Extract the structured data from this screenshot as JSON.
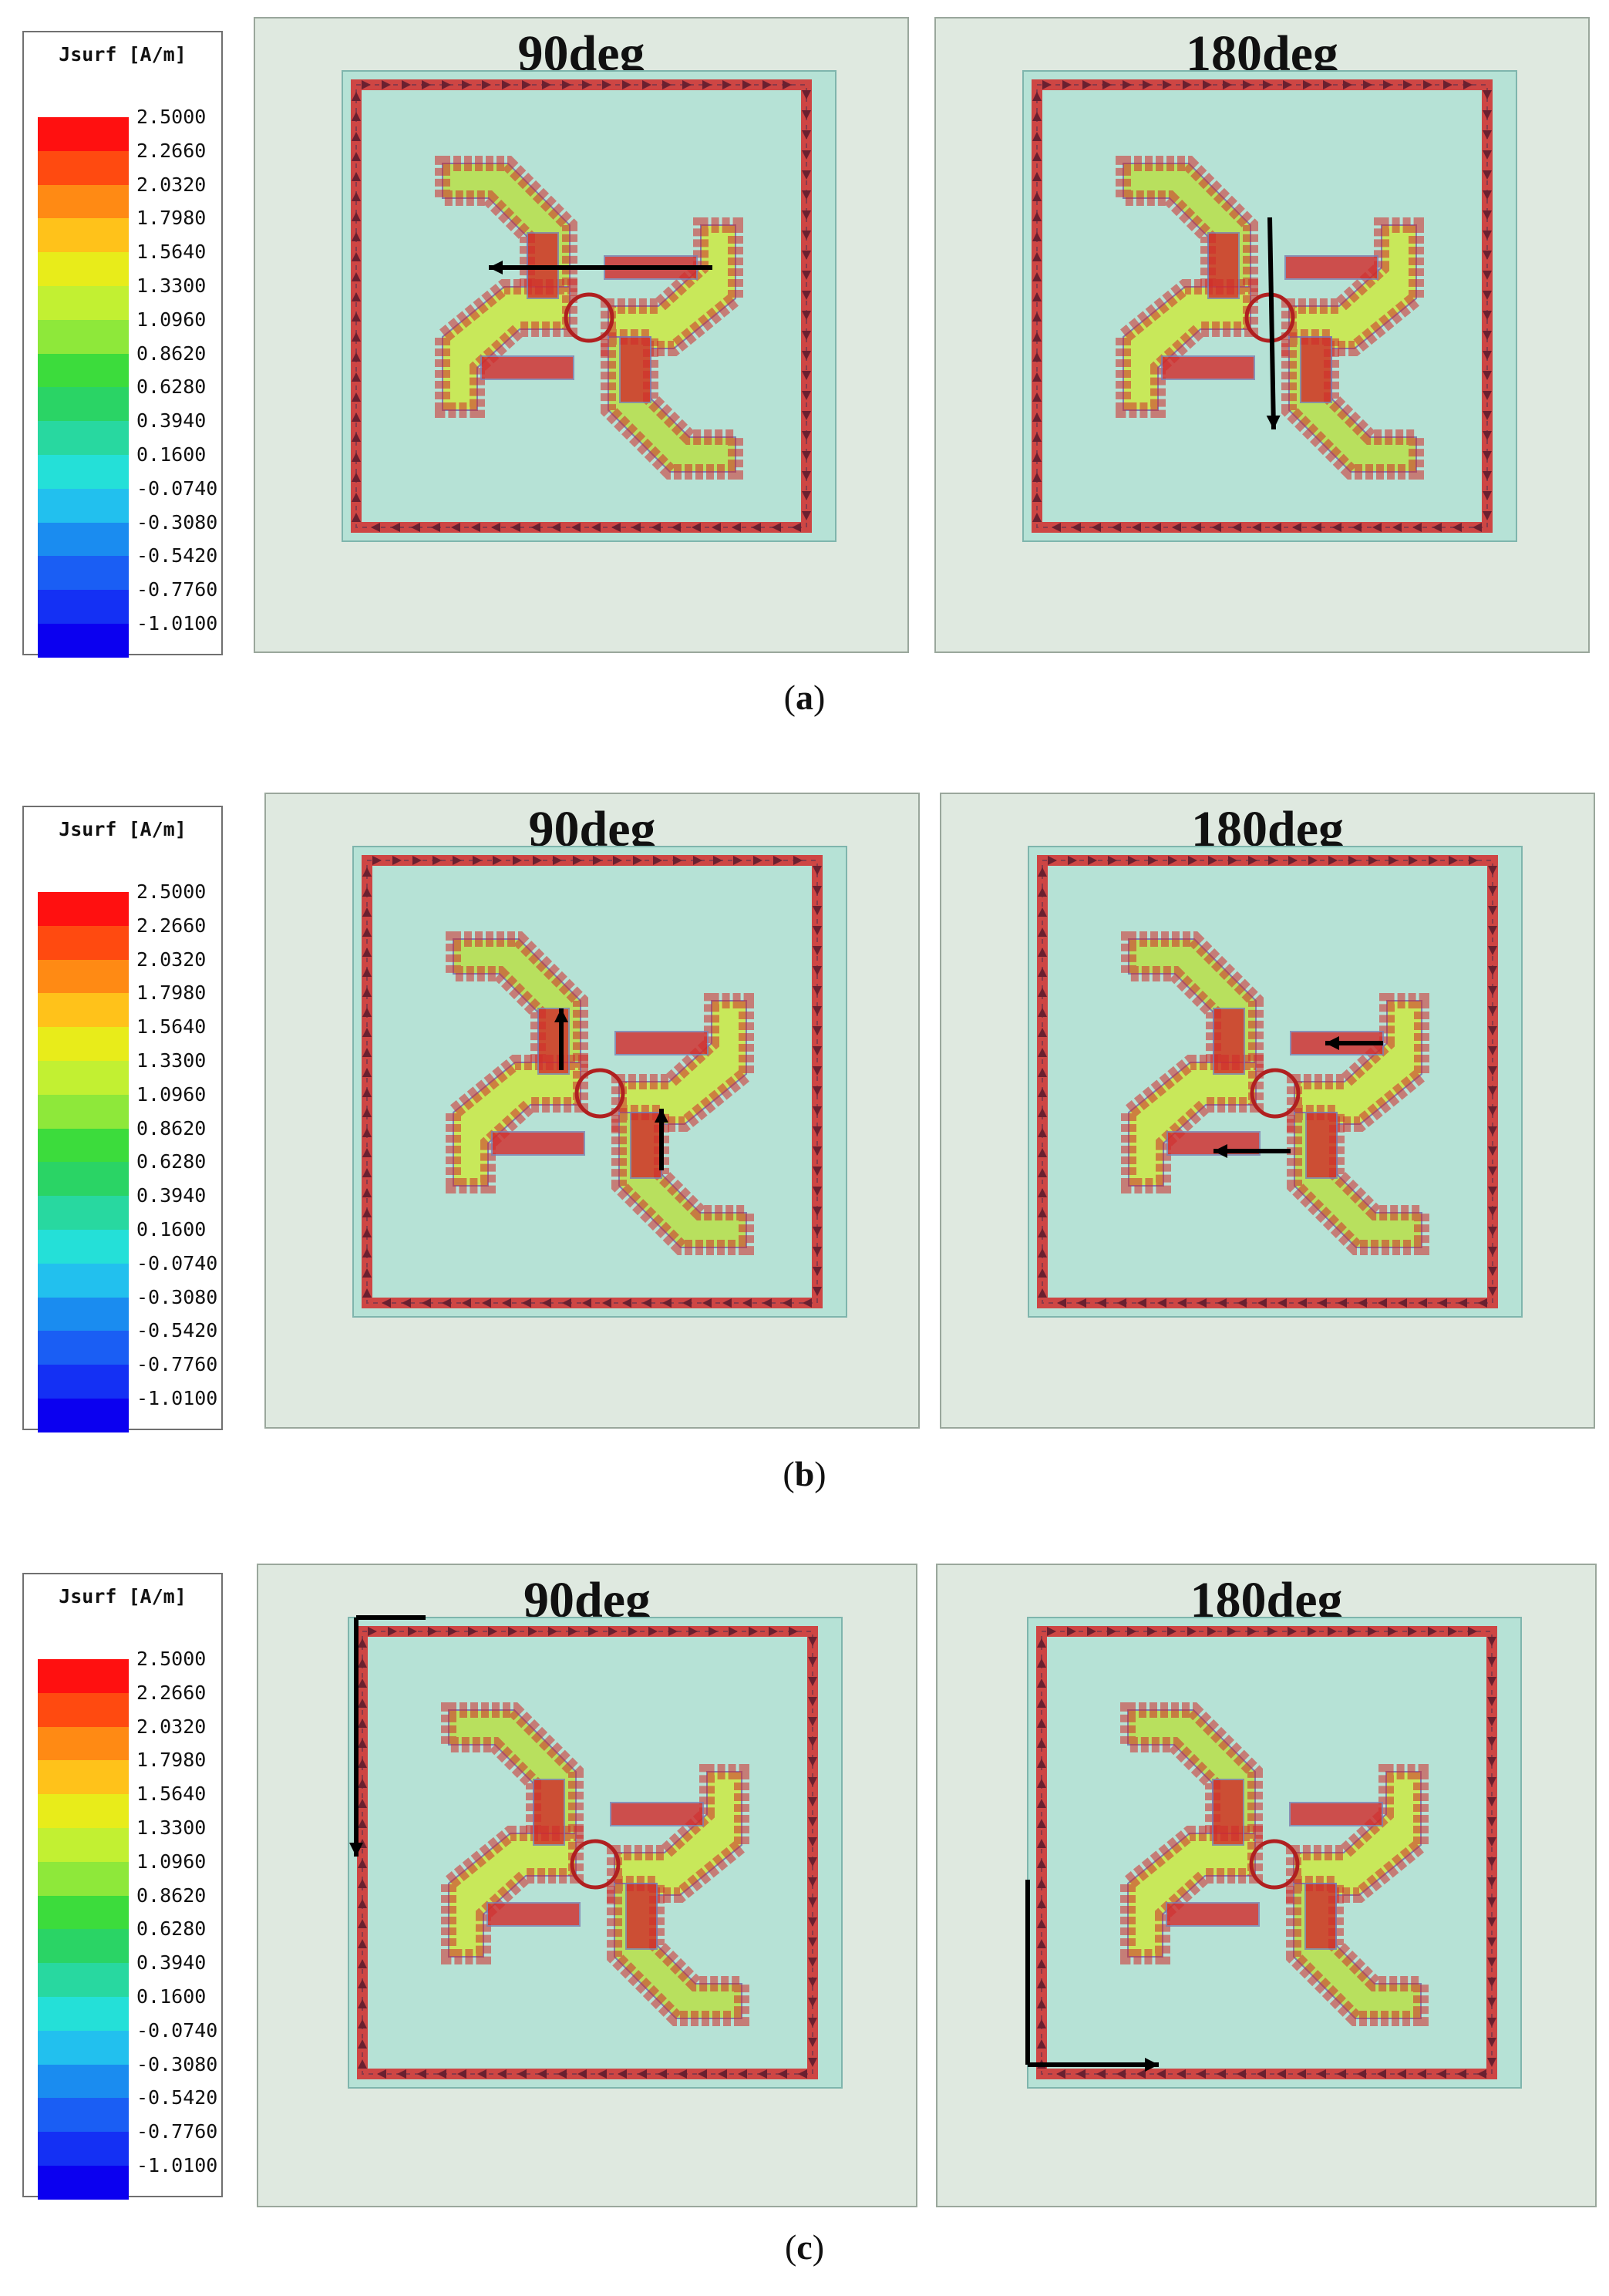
{
  "legend": {
    "title": "Jsurf [A/m]",
    "ticks": [
      "2.5000",
      "2.2660",
      "2.0320",
      "1.7980",
      "1.5640",
      "1.3300",
      "1.0960",
      "0.8620",
      "0.6280",
      "0.3940",
      "0.1600",
      "-0.0740",
      "-0.3080",
      "-0.5420",
      "-0.7760",
      "-1.0100"
    ],
    "colors": [
      "#ff1010",
      "#ff4a10",
      "#ff8a14",
      "#ffc21a",
      "#e8ec1a",
      "#c2f032",
      "#8ee83a",
      "#3cdc3c",
      "#2ad465",
      "#28d8a0",
      "#24e0d8",
      "#22c0ee",
      "#1a8cf0",
      "#1a5ef4",
      "#1430f4",
      "#0b00f0"
    ]
  },
  "figure_a": {
    "caption_label": "a",
    "panels": [
      {
        "title": "90deg"
      },
      {
        "title": "180deg"
      }
    ]
  },
  "figure_b": {
    "caption_label": "b",
    "panels": [
      {
        "title": "90deg"
      },
      {
        "title": "180deg"
      }
    ]
  },
  "figure_c": {
    "caption_label": "c",
    "panels": [
      {
        "title": "90deg"
      },
      {
        "title": "180deg"
      }
    ]
  },
  "colors": {
    "panel_bg": "#dfe9e0",
    "substrate": "#b6e2d6",
    "current_arrows": "#d22a2a",
    "low_current": "#8ee83a",
    "direction_arrow": "#000000"
  }
}
